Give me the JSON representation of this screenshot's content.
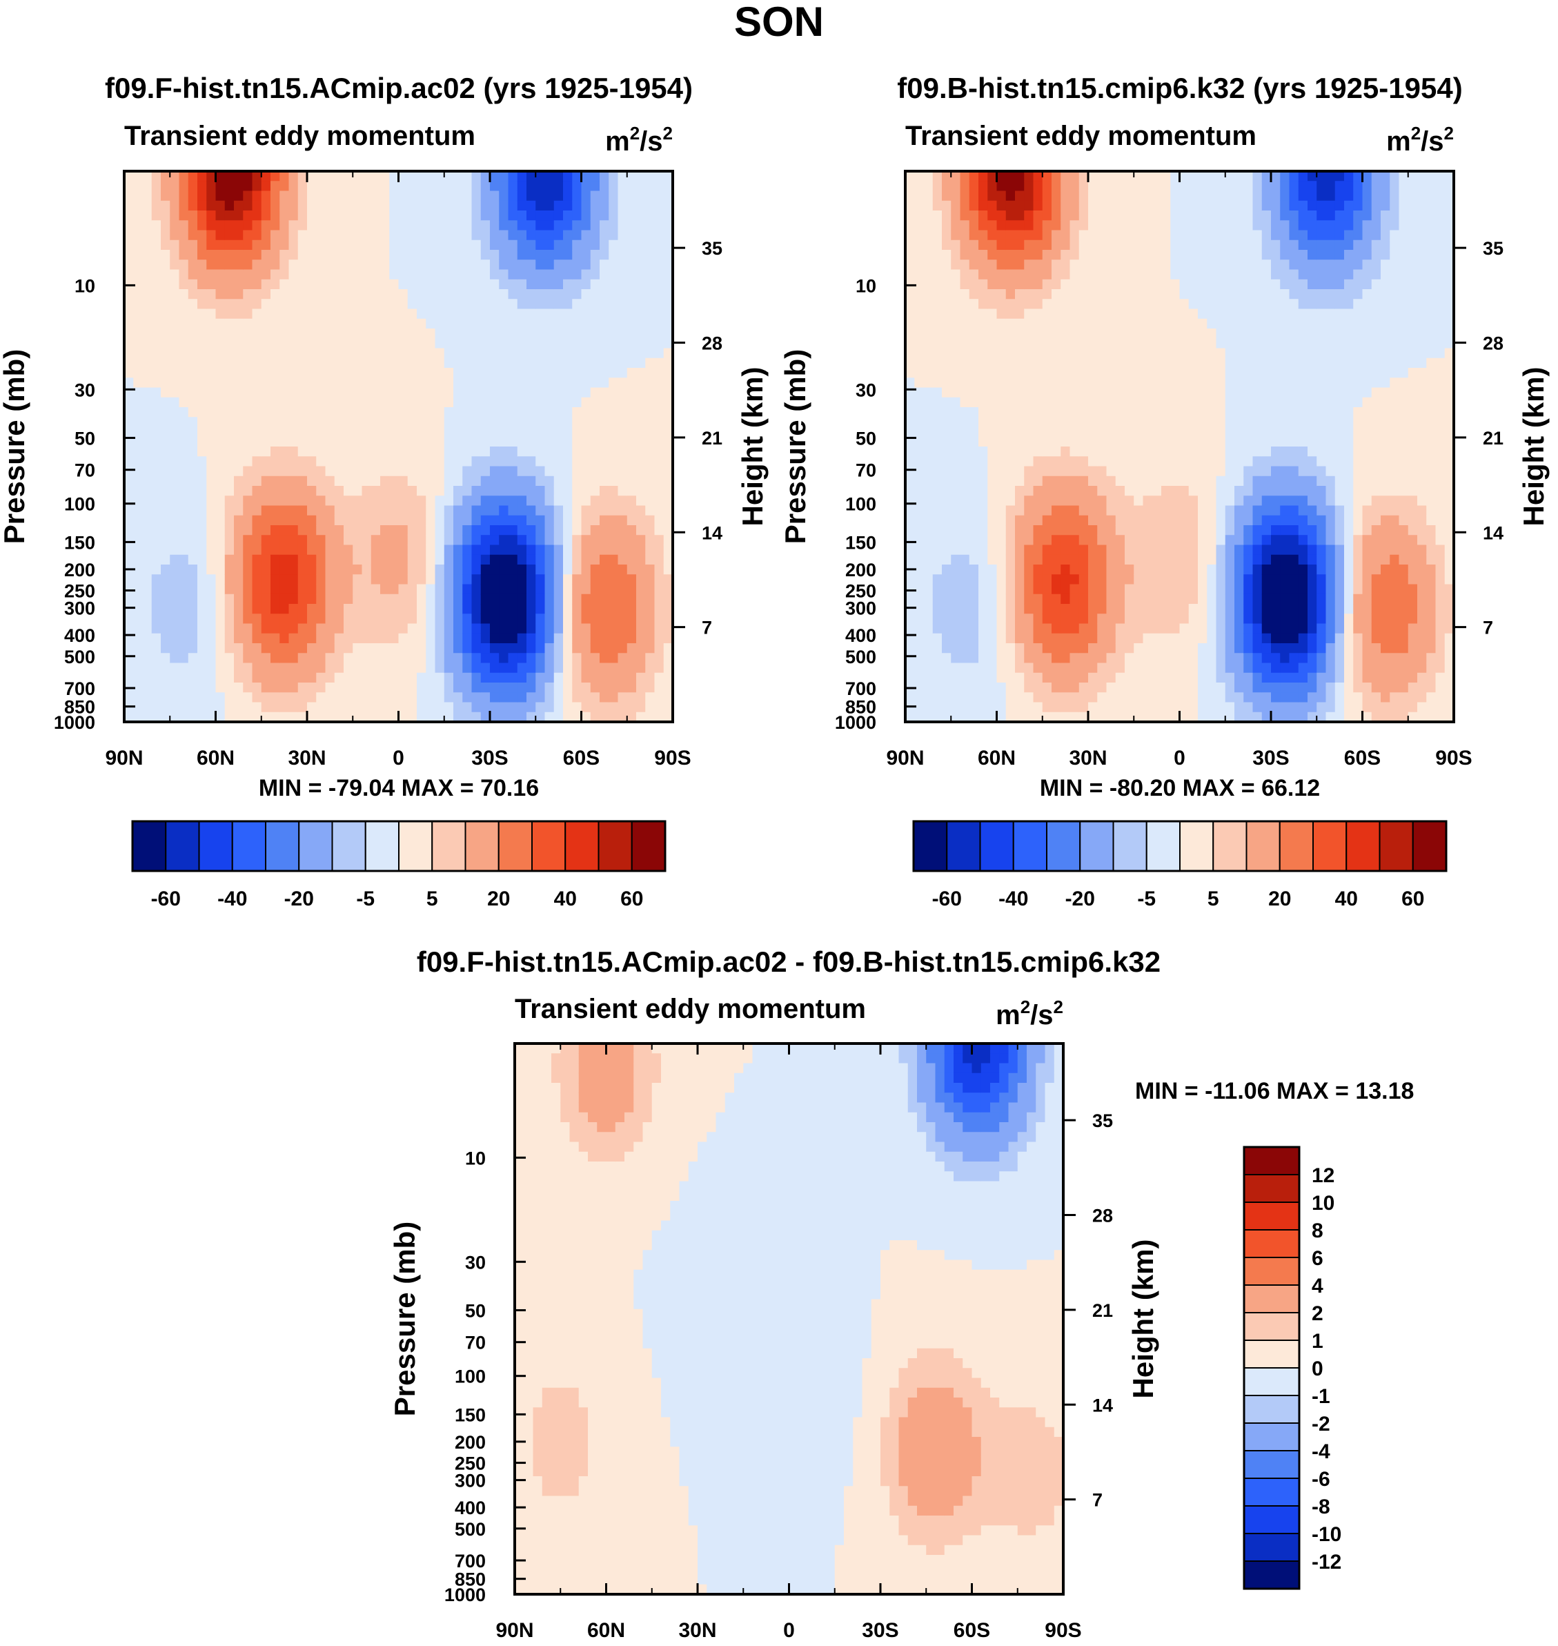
{
  "page_title": "SON",
  "palette_main": [
    "#000f78",
    "#0a2ec4",
    "#1743ee",
    "#2d62fb",
    "#4f82f5",
    "#86a8f7",
    "#b3caf8",
    "#dbe9fb",
    "#fde9d9",
    "#fbcab4",
    "#f7a585",
    "#f47a4e",
    "#f2542b",
    "#e43315",
    "#b91f0c",
    "#8b0606"
  ],
  "palette_diff": [
    "#000f78",
    "#0a2ec4",
    "#1743ee",
    "#2d62fb",
    "#4f82f5",
    "#86a8f7",
    "#b3caf8",
    "#dbe9fb",
    "#fde9d9",
    "#fbcab4",
    "#f7a585",
    "#f47a4e",
    "#f2542b",
    "#e43315",
    "#b91f0c",
    "#8b0606"
  ],
  "axes": {
    "x_ticks": [
      "90N",
      "60N",
      "30N",
      "0",
      "30S",
      "60S",
      "90S"
    ],
    "p_ticks": [
      "10",
      "30",
      "50",
      "70",
      "100",
      "150",
      "200",
      "250",
      "300",
      "400",
      "500",
      "700",
      "850",
      "1000"
    ],
    "h_ticks": [
      "35",
      "28",
      "21",
      "14",
      "7"
    ],
    "ylabel_left": "Pressure (mb)",
    "ylabel_right": "Height (km)",
    "unit_base": "m",
    "unit_sup1": "2",
    "unit_mid": "/s",
    "unit_sup2": "2"
  },
  "chart_data": [
    {
      "type": "heatmap",
      "title": "f09.F-hist.tn15.ACmip.ac02 (yrs 1925-1954)",
      "subtitle": "Transient eddy momentum",
      "stats": "MIN = -79.04  MAX =  70.16",
      "min": -79.04,
      "max": 70.16,
      "x_range": [
        90,
        -90
      ],
      "p_range_mb": [
        1000,
        3
      ],
      "colorbar_labels": [
        "-60",
        "-40",
        "-20",
        "-5",
        "5",
        "20",
        "40",
        "60"
      ],
      "colorbar_levels": [
        -70,
        -60,
        -50,
        -40,
        -30,
        -20,
        -10,
        -5,
        0,
        5,
        10,
        20,
        30,
        40,
        50,
        60,
        70
      ],
      "features": [
        {
          "lat": 55,
          "p_mb": 3,
          "value": 70
        },
        {
          "lat": 38,
          "p_mb": 230,
          "value": 45
        },
        {
          "lat": 0,
          "p_mb": 180,
          "value": 12
        },
        {
          "lat": -35,
          "p_mb": 270,
          "value": -79
        },
        {
          "lat": -48,
          "p_mb": 3,
          "value": -60
        },
        {
          "lat": -68,
          "p_mb": 300,
          "value": 30
        },
        {
          "lat": 70,
          "p_mb": 300,
          "value": -8
        }
      ]
    },
    {
      "type": "heatmap",
      "title": "f09.B-hist.tn15.cmip6.k32 (yrs 1925-1954)",
      "subtitle": "Transient eddy momentum",
      "stats": "MIN = -80.20  MAX =  66.12",
      "min": -80.2,
      "max": 66.12,
      "x_range": [
        90,
        -90
      ],
      "p_range_mb": [
        1000,
        3
      ],
      "colorbar_labels": [
        "-60",
        "-40",
        "-20",
        "-5",
        "5",
        "20",
        "40",
        "60"
      ],
      "colorbar_levels": [
        -70,
        -60,
        -50,
        -40,
        -30,
        -20,
        -10,
        -5,
        0,
        5,
        10,
        20,
        30,
        40,
        50,
        60,
        70
      ],
      "features": [
        {
          "lat": 55,
          "p_mb": 3,
          "value": 66
        },
        {
          "lat": 38,
          "p_mb": 230,
          "value": 42
        },
        {
          "lat": 0,
          "p_mb": 180,
          "value": 10
        },
        {
          "lat": -35,
          "p_mb": 270,
          "value": -80
        },
        {
          "lat": -48,
          "p_mb": 3,
          "value": -55
        },
        {
          "lat": -68,
          "p_mb": 300,
          "value": 28
        },
        {
          "lat": 70,
          "p_mb": 300,
          "value": -8
        }
      ]
    },
    {
      "type": "heatmap",
      "title": "f09.F-hist.tn15.ACmip.ac02 - f09.B-hist.tn15.cmip6.k32",
      "subtitle": "Transient eddy momentum",
      "stats": "MIN = -11.06  MAX =  13.18",
      "min": -11.06,
      "max": 13.18,
      "x_range": [
        90,
        -90
      ],
      "p_range_mb": [
        1000,
        3
      ],
      "colorbar_labels": [
        "12",
        "10",
        "8",
        "6",
        "4",
        "2",
        "1",
        "0",
        "-1",
        "-2",
        "-4",
        "-6",
        "-8",
        "-10",
        "-12"
      ],
      "colorbar_levels": [
        -14,
        -12,
        -10,
        -8,
        -6,
        -4,
        -2,
        -1,
        0,
        1,
        2,
        4,
        6,
        8,
        10,
        12,
        14
      ],
      "features": [
        {
          "lat": -62,
          "p_mb": 3,
          "value": -11
        },
        {
          "lat": 60,
          "p_mb": 4,
          "value": 3
        },
        {
          "lat": -48,
          "p_mb": 220,
          "value": 3.5
        },
        {
          "lat": 75,
          "p_mb": 200,
          "value": 1.5
        },
        {
          "lat": -80,
          "p_mb": 280,
          "value": 1.5
        },
        {
          "lat": 20,
          "p_mb": 40,
          "value": -0.5
        },
        {
          "lat": -10,
          "p_mb": 120,
          "value": -0.5
        }
      ]
    }
  ]
}
